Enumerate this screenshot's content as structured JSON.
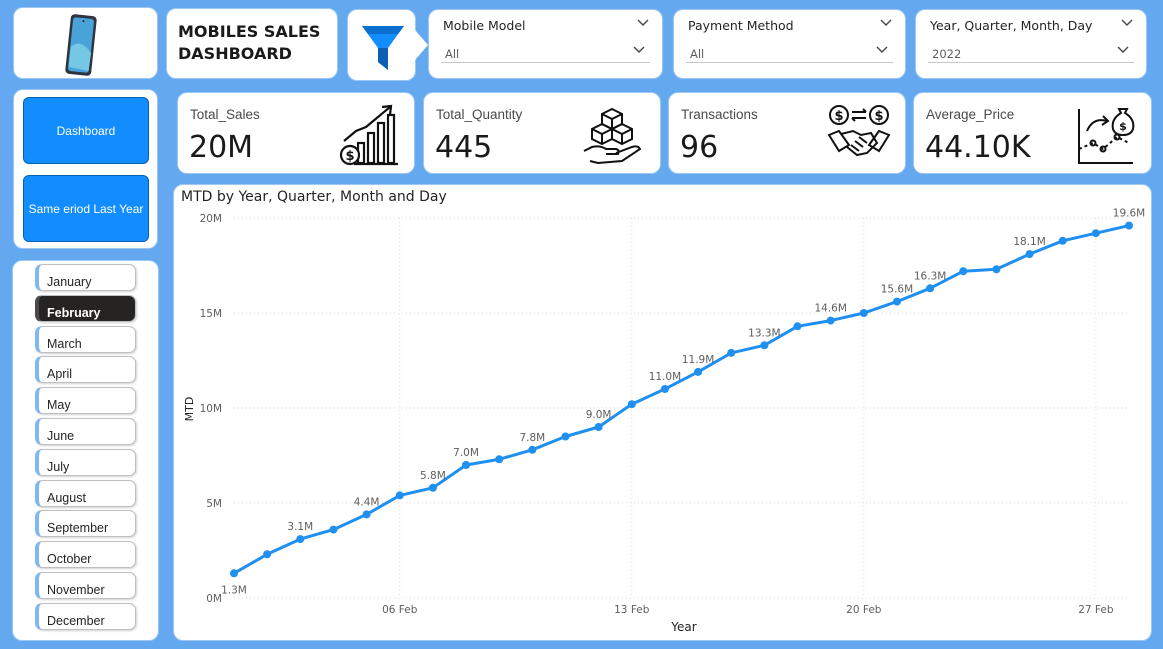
{
  "header": {
    "title": "MOBILES SALES DASHBOARD",
    "icons": [
      "mobile-phone-icon",
      "funnel-icon"
    ]
  },
  "slicers": {
    "model": {
      "label": "Mobile Model",
      "value": "All"
    },
    "payment": {
      "label": "Payment Method",
      "value": "All"
    },
    "date": {
      "label": "Year, Quarter, Month, Day",
      "value": "2022"
    }
  },
  "nav": {
    "dashboard": "Dashboard",
    "same_period": "Same eriod Last Year"
  },
  "months": [
    "January",
    "February",
    "March",
    "April",
    "May",
    "June",
    "July",
    "August",
    "September",
    "October",
    "November",
    "December"
  ],
  "selected_month": "February",
  "kpis": [
    {
      "label": "Total_Sales",
      "value": "20M",
      "icon": "bar-growth-money-icon"
    },
    {
      "label": "Total_Quantity",
      "value": "445",
      "icon": "boxes-in-hand-icon"
    },
    {
      "label": "Transactions",
      "value": "96",
      "icon": "handshake-exchange-icon"
    },
    {
      "label": "Average_Price",
      "value": "44.10K",
      "icon": "money-bag-chart-icon"
    }
  ],
  "colors": {
    "accent": "#118dff",
    "background": "#64a9ef",
    "line": "#1f8ff0"
  },
  "chart_data": {
    "type": "line",
    "title": "MTD by Year, Quarter, Month and Day",
    "xlabel": "Year",
    "ylabel": "MTD",
    "ylim": [
      0,
      20
    ],
    "y_ticks": [
      "0M",
      "5M",
      "10M",
      "15M",
      "20M"
    ],
    "x_ticks": [
      {
        "day": 6,
        "label": "06 Feb"
      },
      {
        "day": 13,
        "label": "13 Feb"
      },
      {
        "day": 20,
        "label": "20 Feb"
      },
      {
        "day": 27,
        "label": "27 Feb"
      }
    ],
    "grid": true,
    "series": [
      {
        "x": [
          1,
          2,
          3,
          4,
          5,
          6,
          7,
          8,
          9,
          10,
          11,
          12,
          13,
          14,
          15,
          16,
          17,
          18,
          19,
          20,
          21,
          22,
          23,
          24,
          25,
          26,
          27,
          28
        ],
        "values": [
          1.3,
          2.3,
          3.1,
          3.6,
          4.4,
          5.4,
          5.8,
          7.0,
          7.3,
          7.8,
          8.5,
          9.0,
          10.2,
          11.0,
          11.9,
          12.9,
          13.3,
          14.3,
          14.6,
          15.0,
          15.6,
          16.3,
          17.2,
          17.3,
          18.1,
          18.8,
          19.2,
          19.6
        ],
        "labels": [
          "1.3M",
          "",
          "3.1M",
          "",
          "4.4M",
          "",
          "5.8M",
          "7.0M",
          "",
          "7.8M",
          "",
          "9.0M",
          "",
          "11.0M",
          "11.9M",
          "",
          "13.3M",
          "",
          "14.6M",
          "",
          "15.6M",
          "16.3M",
          "",
          "",
          "18.1M",
          "",
          "",
          "19.6M"
        ]
      }
    ]
  }
}
